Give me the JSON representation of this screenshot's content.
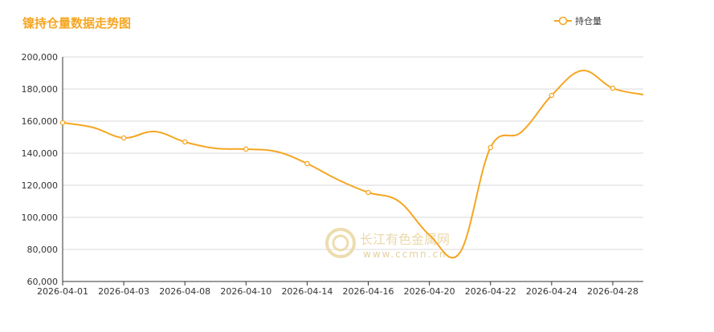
{
  "chart_data": {
    "type": "line",
    "title": "镍持仓量数据走势图",
    "legend": {
      "position": "top-right",
      "entries": [
        "持仓量"
      ]
    },
    "series": [
      {
        "name": "持仓量",
        "color": "#f5a623",
        "points": [
          {
            "x": "2026-04-01",
            "y": 159000
          },
          {
            "x": "2026-04-02",
            "y": 156000
          },
          {
            "x": "2026-04-03",
            "y": 149500
          },
          {
            "x": "2026-04-07",
            "y": 153500
          },
          {
            "x": "2026-04-08",
            "y": 147000
          },
          {
            "x": "2026-04-09",
            "y": 143000
          },
          {
            "x": "2026-04-10",
            "y": 142500
          },
          {
            "x": "2026-04-13",
            "y": 141000
          },
          {
            "x": "2026-04-14",
            "y": 133500
          },
          {
            "x": "2026-04-15",
            "y": 123500
          },
          {
            "x": "2026-04-16",
            "y": 115500
          },
          {
            "x": "2026-04-17",
            "y": 110000
          },
          {
            "x": "2026-04-20",
            "y": 89000
          },
          {
            "x": "2026-04-21",
            "y": 78000
          },
          {
            "x": "2026-04-22",
            "y": 143500
          },
          {
            "x": "2026-04-23",
            "y": 153000
          },
          {
            "x": "2026-04-24",
            "y": 176000
          },
          {
            "x": "2026-04-27",
            "y": 191500
          },
          {
            "x": "2026-04-28",
            "y": 180500
          },
          {
            "x": "2026-04-29",
            "y": 176500
          }
        ]
      }
    ],
    "x_tick_labels": [
      "2026-04-01",
      "2026-04-03",
      "2026-04-08",
      "2026-04-10",
      "2026-04-14",
      "2026-04-16",
      "2026-04-20",
      "2026-04-22",
      "2026-04-24",
      "2026-04-28"
    ],
    "y_tick_labels": [
      "60,000",
      "80,000",
      "100,000",
      "120,000",
      "140,000",
      "160,000",
      "180,000",
      "200,000"
    ],
    "y_ticks": [
      60000,
      80000,
      100000,
      120000,
      140000,
      160000,
      180000,
      200000
    ],
    "ylim": [
      60000,
      200000
    ],
    "grid": "horizontal",
    "markers": [
      "2026-04-01",
      "2026-04-03",
      "2026-04-08",
      "2026-04-10",
      "2026-04-14",
      "2026-04-16",
      "2026-04-22",
      "2026-04-24",
      "2026-04-28"
    ]
  },
  "watermark": {
    "text": "长江有色金属网",
    "url": "www.ccmn.cn"
  }
}
